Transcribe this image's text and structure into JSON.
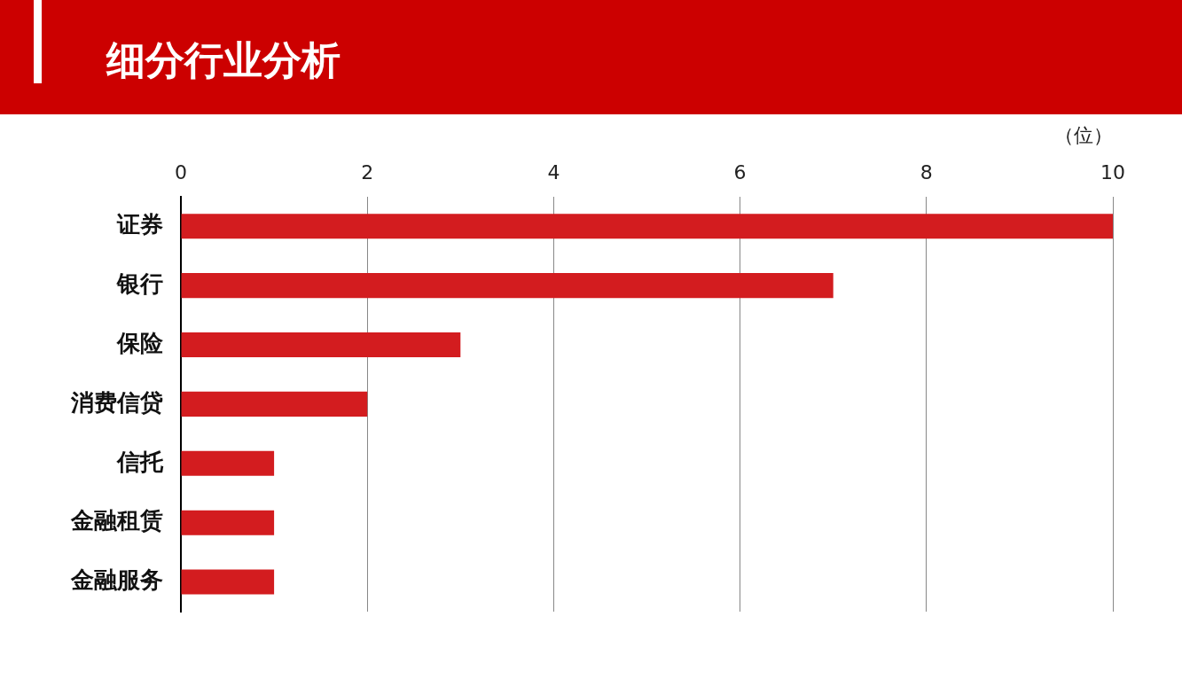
{
  "chart_data": {
    "type": "bar",
    "orientation": "horizontal",
    "title": "细分行业分析",
    "xlabel": "（位）",
    "categories": [
      "证券",
      "银行",
      "保险",
      "消费信贷",
      "信托",
      "金融租赁",
      "金融服务"
    ],
    "values": [
      10,
      7,
      3,
      2,
      1,
      1,
      1
    ],
    "color": "#d31c1f",
    "xlim": [
      0,
      10
    ],
    "xticks": [
      0,
      2,
      4,
      6,
      8,
      10
    ],
    "grid": "x",
    "legend": false
  }
}
